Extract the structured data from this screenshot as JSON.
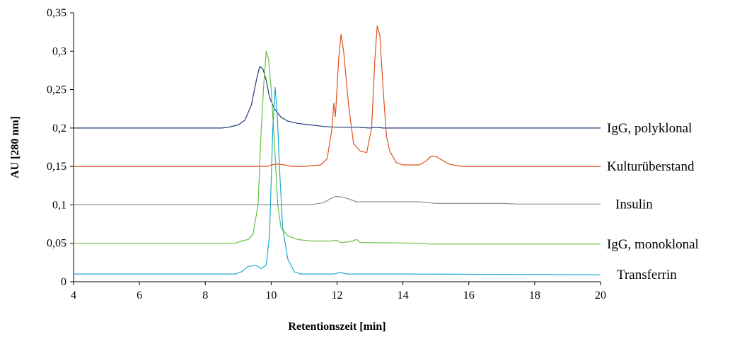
{
  "chart_data": {
    "type": "line",
    "xlabel": "Retentionszeit [min]",
    "ylabel": "AU [280 nm]",
    "xlim": [
      4,
      20
    ],
    "ylim": [
      0,
      0.35
    ],
    "x_ticks": [
      4,
      6,
      8,
      10,
      12,
      14,
      16,
      18,
      20
    ],
    "y_ticks": [
      0,
      0.05,
      0.1,
      0.15,
      0.2,
      0.25,
      0.3,
      0.35
    ],
    "x_tick_labels": [
      "4",
      "6",
      "8",
      "10",
      "12",
      "14",
      "16",
      "18",
      "20"
    ],
    "y_tick_labels": [
      "0",
      "0,05",
      "0,1",
      "0,15",
      "0,2",
      "0,25",
      "0,3",
      "0,35"
    ],
    "grid": false,
    "series": [
      {
        "name": "IgG, polyklonal",
        "color": "#1f3a7a",
        "points": [
          [
            4,
            0.2
          ],
          [
            8.5,
            0.2
          ],
          [
            8.7,
            0.201
          ],
          [
            9.0,
            0.204
          ],
          [
            9.2,
            0.21
          ],
          [
            9.4,
            0.23
          ],
          [
            9.55,
            0.262
          ],
          [
            9.65,
            0.28
          ],
          [
            9.75,
            0.277
          ],
          [
            9.85,
            0.262
          ],
          [
            9.95,
            0.24
          ],
          [
            10.1,
            0.225
          ],
          [
            10.3,
            0.214
          ],
          [
            10.5,
            0.209
          ],
          [
            10.8,
            0.206
          ],
          [
            11.2,
            0.204
          ],
          [
            11.6,
            0.202
          ],
          [
            12.0,
            0.201
          ],
          [
            12.1,
            0.201
          ],
          [
            12.6,
            0.201
          ],
          [
            13.0,
            0.2
          ],
          [
            13.2,
            0.201
          ],
          [
            13.4,
            0.2
          ],
          [
            20,
            0.2
          ]
        ]
      },
      {
        "name": "Kulturüberstand",
        "color": "#e0501e",
        "points": [
          [
            4,
            0.15
          ],
          [
            9.9,
            0.15
          ],
          [
            10.0,
            0.152
          ],
          [
            10.2,
            0.153
          ],
          [
            10.4,
            0.152
          ],
          [
            10.6,
            0.15
          ],
          [
            11.0,
            0.15
          ],
          [
            11.5,
            0.152
          ],
          [
            11.7,
            0.16
          ],
          [
            11.85,
            0.2
          ],
          [
            11.9,
            0.232
          ],
          [
            11.95,
            0.215
          ],
          [
            12.05,
            0.29
          ],
          [
            12.12,
            0.322
          ],
          [
            12.2,
            0.3
          ],
          [
            12.35,
            0.23
          ],
          [
            12.5,
            0.18
          ],
          [
            12.7,
            0.17
          ],
          [
            12.9,
            0.168
          ],
          [
            13.05,
            0.2
          ],
          [
            13.15,
            0.29
          ],
          [
            13.22,
            0.333
          ],
          [
            13.3,
            0.32
          ],
          [
            13.4,
            0.25
          ],
          [
            13.5,
            0.19
          ],
          [
            13.6,
            0.17
          ],
          [
            13.8,
            0.155
          ],
          [
            14.0,
            0.152
          ],
          [
            14.5,
            0.152
          ],
          [
            14.7,
            0.157
          ],
          [
            14.85,
            0.163
          ],
          [
            15.0,
            0.163
          ],
          [
            15.2,
            0.158
          ],
          [
            15.4,
            0.153
          ],
          [
            15.8,
            0.15
          ],
          [
            20,
            0.15
          ]
        ]
      },
      {
        "name": "Insulin",
        "color": "#8c8c8c",
        "points": [
          [
            4,
            0.1
          ],
          [
            11.2,
            0.1
          ],
          [
            11.6,
            0.103
          ],
          [
            11.8,
            0.108
          ],
          [
            11.95,
            0.111
          ],
          [
            12.2,
            0.11
          ],
          [
            12.4,
            0.107
          ],
          [
            12.6,
            0.104
          ],
          [
            13.5,
            0.104
          ],
          [
            14.0,
            0.104
          ],
          [
            14.5,
            0.104
          ],
          [
            15.0,
            0.102
          ],
          [
            17.0,
            0.102
          ],
          [
            17.5,
            0.101
          ],
          [
            20,
            0.101
          ]
        ]
      },
      {
        "name": "IgG, monoklonal",
        "color": "#6abf40",
        "points": [
          [
            4,
            0.05
          ],
          [
            8.9,
            0.05
          ],
          [
            9.1,
            0.053
          ],
          [
            9.3,
            0.055
          ],
          [
            9.45,
            0.062
          ],
          [
            9.6,
            0.1
          ],
          [
            9.7,
            0.2
          ],
          [
            9.78,
            0.26
          ],
          [
            9.85,
            0.3
          ],
          [
            9.92,
            0.29
          ],
          [
            10.0,
            0.25
          ],
          [
            10.1,
            0.18
          ],
          [
            10.2,
            0.1
          ],
          [
            10.3,
            0.07
          ],
          [
            10.5,
            0.06
          ],
          [
            10.8,
            0.055
          ],
          [
            11.2,
            0.053
          ],
          [
            11.8,
            0.053
          ],
          [
            12.0,
            0.054
          ],
          [
            12.1,
            0.051
          ],
          [
            12.4,
            0.052
          ],
          [
            12.6,
            0.055
          ],
          [
            12.7,
            0.051
          ],
          [
            14.7,
            0.05
          ],
          [
            14.8,
            0.049
          ],
          [
            20,
            0.049
          ]
        ]
      },
      {
        "name": "Transferrin",
        "color": "#1aa9d6",
        "points": [
          [
            4,
            0.01
          ],
          [
            8.9,
            0.01
          ],
          [
            9.1,
            0.013
          ],
          [
            9.3,
            0.02
          ],
          [
            9.55,
            0.021
          ],
          [
            9.7,
            0.017
          ],
          [
            9.85,
            0.022
          ],
          [
            9.95,
            0.06
          ],
          [
            10.05,
            0.2
          ],
          [
            10.12,
            0.253
          ],
          [
            10.18,
            0.22
          ],
          [
            10.25,
            0.15
          ],
          [
            10.35,
            0.07
          ],
          [
            10.5,
            0.03
          ],
          [
            10.7,
            0.013
          ],
          [
            10.9,
            0.01
          ],
          [
            11.9,
            0.01
          ],
          [
            12.1,
            0.012
          ],
          [
            12.3,
            0.01
          ],
          [
            14.0,
            0.01
          ],
          [
            20,
            0.009
          ]
        ]
      }
    ]
  }
}
